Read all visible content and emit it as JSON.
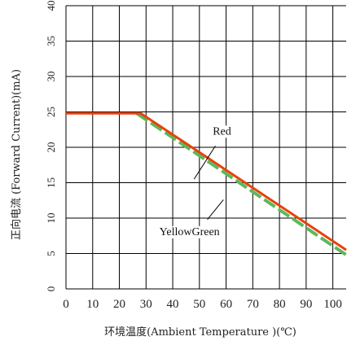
{
  "chart_data": {
    "type": "line",
    "title": "",
    "xlabel": "环境温度(Ambient  Temperature )(℃)",
    "ylabel": "正向电流 (Forward  Current)(mA)",
    "xlim": [
      0,
      105
    ],
    "ylim": [
      0,
      40
    ],
    "x_ticks": [
      "0",
      "10",
      "20",
      "30",
      "40",
      "50",
      "60",
      "70",
      "80",
      "90",
      "100"
    ],
    "y_ticks": [
      "0",
      "5",
      "10",
      "15",
      "20",
      "25",
      "30",
      "35",
      "40"
    ],
    "grid": true,
    "series": [
      {
        "name": "Red",
        "color": "#e8420a",
        "dashed": false,
        "x": [
          0,
          28,
          105
        ],
        "y": [
          24.8,
          24.8,
          5.5
        ]
      },
      {
        "name": "YellowGreen",
        "color": "#5cb85c",
        "dashed": true,
        "x": [
          26.5,
          105
        ],
        "y": [
          24.8,
          4.8
        ]
      }
    ],
    "annotations": [
      {
        "text": "Red",
        "x": 55,
        "y": 21.8,
        "pointer": [
          [
            56,
            20.2
          ],
          [
            48,
            15.5
          ]
        ]
      },
      {
        "text": "YellowGreen",
        "x": 35,
        "y": 7.6,
        "pointer": [
          [
            53,
            9.8
          ],
          [
            59,
            12.6
          ]
        ]
      }
    ]
  }
}
